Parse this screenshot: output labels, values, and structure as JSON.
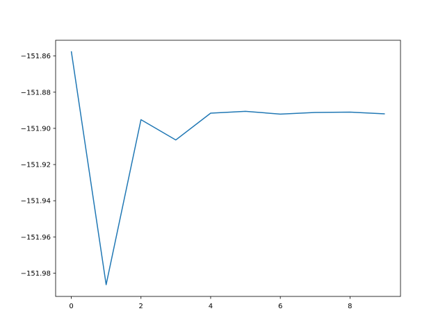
{
  "chart_data": {
    "type": "line",
    "title": "",
    "xlabel": "",
    "ylabel": "",
    "xlim": [
      -0.45,
      9.45
    ],
    "ylim": [
      -151.9929,
      -151.8513
    ],
    "grid": false,
    "x_ticks": [
      0,
      2,
      4,
      6,
      8
    ],
    "x_tick_labels": [
      "0",
      "2",
      "4",
      "6",
      "8"
    ],
    "y_ticks": [
      -151.86,
      -151.88,
      -151.9,
      -151.92,
      -151.94,
      -151.96,
      -151.98
    ],
    "y_tick_labels": [
      "−151.86",
      "−151.88",
      "−151.90",
      "−151.92",
      "−151.94",
      "−151.96",
      "−151.98"
    ],
    "series": [
      {
        "color": "#1f77b4",
        "x": [
          0,
          1,
          2,
          3,
          4,
          5,
          6,
          7,
          8,
          9
        ],
        "y": [
          -151.8574,
          -151.9864,
          -151.8952,
          -151.9064,
          -151.8916,
          -151.8906,
          -151.8921,
          -151.8912,
          -151.891,
          -151.892
        ]
      }
    ]
  }
}
